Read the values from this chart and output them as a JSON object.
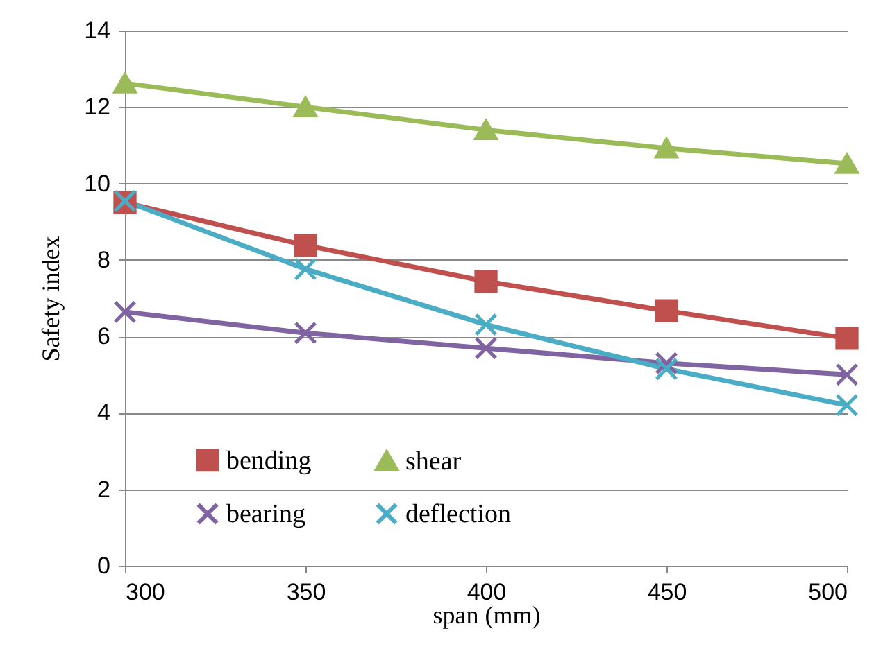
{
  "chart_data": {
    "type": "line",
    "xlabel": "span (mm)",
    "ylabel": "Safety index",
    "x": [
      300,
      350,
      400,
      450,
      500
    ],
    "series": [
      {
        "name": "bending",
        "color": "#c0504d",
        "marker": "square",
        "values": [
          9.5,
          8.38,
          7.44,
          6.67,
          5.95
        ]
      },
      {
        "name": "shear",
        "color": "#9bbb59",
        "marker": "triangle",
        "values": [
          12.62,
          12.0,
          11.4,
          10.92,
          10.52
        ]
      },
      {
        "name": "bearing",
        "color": "#8064a2",
        "marker": "cross",
        "values": [
          6.64,
          6.09,
          5.69,
          5.3,
          5.0
        ]
      },
      {
        "name": "deflection",
        "color": "#4bacc6",
        "marker": "cross",
        "values": [
          9.54,
          7.76,
          6.31,
          5.15,
          4.2
        ]
      }
    ],
    "xlim": [
      300,
      500
    ],
    "xticks": [
      300,
      350,
      400,
      450,
      500
    ],
    "ylim": [
      0,
      14
    ],
    "yticks": [
      0,
      2,
      4,
      6,
      8,
      10,
      12,
      14
    ],
    "grid": "y",
    "legend": "bottom left",
    "line_style": "solid"
  }
}
